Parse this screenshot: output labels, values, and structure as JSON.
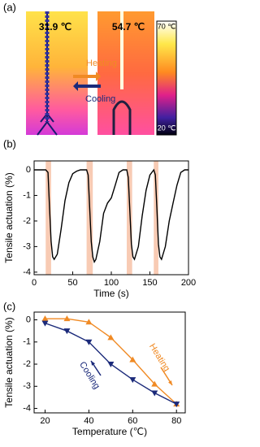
{
  "panel_a": {
    "label": "(a)",
    "left_temp": "31.9 ℃",
    "right_temp": "54.7 ℃",
    "heating": "Heating",
    "cooling": "Cooling",
    "bar_top": "70 ℃",
    "bar_bottom": "20 ℃"
  },
  "chart_data": [
    {
      "type": "line",
      "label": "(b)",
      "x_label": "Time (s)",
      "y_label": "Tensile actuation (%)",
      "xlim": [
        0,
        200
      ],
      "xticks": [
        0,
        50,
        100,
        150,
        200
      ],
      "ylim": [
        -4.1,
        0.35
      ],
      "yticks": [
        0,
        -1,
        -2,
        -3,
        -4
      ],
      "shaded_regions": [
        [
          15,
          22
        ],
        [
          68,
          76
        ],
        [
          120,
          127
        ],
        [
          155,
          161
        ]
      ],
      "shade_color": "#f8cbb4",
      "x": [
        0,
        15,
        18,
        20,
        22,
        24,
        26,
        30,
        35,
        40,
        45,
        50,
        55,
        60,
        68,
        70,
        72,
        74,
        76,
        78,
        80,
        85,
        90,
        95,
        100,
        105,
        110,
        115,
        120,
        122,
        124,
        126,
        128,
        130,
        135,
        140,
        145,
        150,
        155,
        157,
        159,
        161,
        163,
        165,
        170,
        175,
        180,
        185,
        190,
        195,
        200
      ],
      "series": [
        {
          "name": null,
          "color": "#000000",
          "values": [
            0,
            0,
            -0.1,
            -1.5,
            -2.8,
            -3.4,
            -3.5,
            -3.3,
            -2.3,
            -1.2,
            -0.5,
            -0.15,
            -0.05,
            0,
            0,
            -0.2,
            -1.5,
            -2.8,
            -3.4,
            -3.6,
            -3.5,
            -2.8,
            -1.7,
            -1.3,
            -1.1,
            -0.6,
            -0.1,
            0,
            0,
            -0.3,
            -1.6,
            -2.9,
            -3.4,
            -3.5,
            -3.0,
            -1.8,
            -0.8,
            -0.2,
            0,
            -0.2,
            -1.5,
            -2.9,
            -3.4,
            -3.5,
            -3.0,
            -2.0,
            -1.3,
            -0.6,
            -0.1,
            0,
            0
          ]
        }
      ]
    },
    {
      "type": "line",
      "label": "(c)",
      "x_label": "Temperature (℃)",
      "y_label": "Tensile actuation (%)",
      "xlim": [
        15,
        84
      ],
      "xticks": [
        20,
        40,
        60,
        80
      ],
      "ylim": [
        -4.2,
        0.35
      ],
      "yticks": [
        0,
        -1,
        -2,
        -3,
        -4
      ],
      "x": [
        20,
        30,
        40,
        50,
        60,
        70,
        80
      ],
      "series": [
        {
          "name": "Heating",
          "color": "#f08a24",
          "marker": "triangle-up",
          "values": [
            0.05,
            0.05,
            -0.1,
            -0.8,
            -1.8,
            -2.9,
            -3.8
          ]
        },
        {
          "name": "Cooling",
          "color": "#1b2a7a",
          "marker": "triangle-down",
          "values": [
            -0.15,
            -0.5,
            -1.0,
            -2.0,
            -2.7,
            -3.3,
            -3.8
          ]
        }
      ]
    }
  ]
}
